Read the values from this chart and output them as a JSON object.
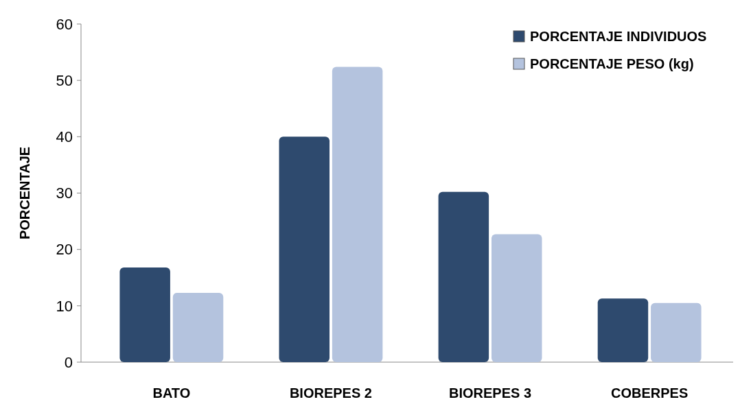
{
  "chart_data": {
    "type": "bar",
    "ylabel": "PORCENTAJE",
    "categories": [
      "BATO",
      "BIOREPES 2",
      "BIOREPES 3",
      "COBERPES"
    ],
    "series": [
      {
        "name": "PORCENTAJE INDIVIDUOS",
        "color": "#2e4a6e",
        "values": [
          16.8,
          40,
          30.2,
          11.3
        ]
      },
      {
        "name": "PORCENTAJE PESO (kg)",
        "color": "#b4c3de",
        "values": [
          12.3,
          52.4,
          22.7,
          10.5
        ]
      }
    ],
    "ylim": [
      0,
      60
    ],
    "yticks": [
      0,
      10,
      20,
      30,
      40,
      50,
      60
    ],
    "legend": "top right",
    "grid": false
  }
}
